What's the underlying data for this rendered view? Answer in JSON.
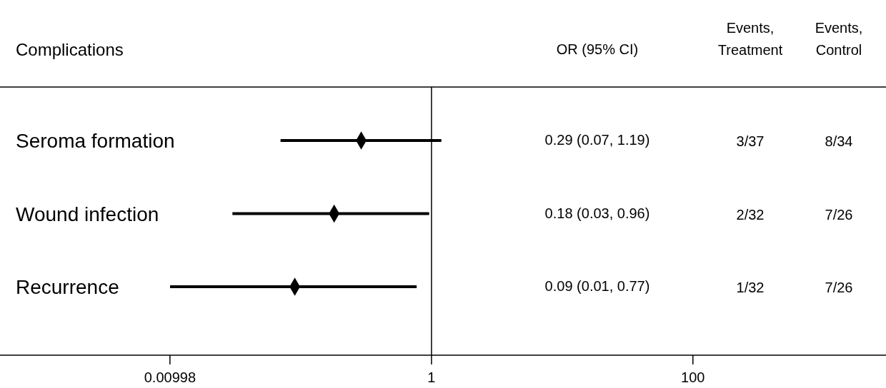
{
  "chart_data": {
    "type": "scatter",
    "orientation": "horizontal",
    "ylabel": "Complications",
    "categories": [
      "Seroma formation",
      "Wound infection",
      "Recurrence"
    ],
    "values": [
      0.29,
      0.18,
      0.09
    ],
    "errors": [
      [
        0.07,
        1.19
      ],
      [
        0.03,
        0.96
      ],
      [
        0.01,
        0.77
      ]
    ],
    "color": "#000000",
    "marker": "diamond",
    "log": "x",
    "xlim": [
      0.0005,
      3000
    ],
    "xticks": [
      0.00998,
      1,
      100
    ],
    "ref_lines": [
      {
        "axis": "x",
        "value": 1,
        "color": "#000000"
      }
    ],
    "annotations": [
      "OR (95% CI)",
      "Events, Treatment",
      "Events, Control",
      "0.29 (0.07, 1.19)",
      "3/37",
      "8/34",
      "0.18 (0.03, 0.96)",
      "2/32",
      "7/26",
      "0.09 (0.01, 0.77)",
      "1/32",
      "7/26"
    ]
  }
}
